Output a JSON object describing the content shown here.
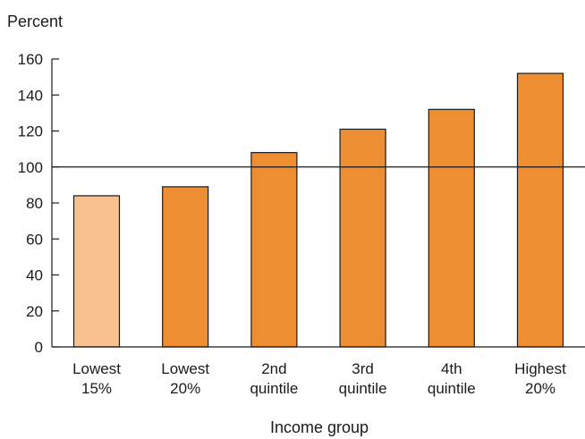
{
  "chart_data": {
    "type": "bar",
    "ylabel": "Percent",
    "xlabel": "Income group",
    "title": "",
    "categories": [
      [
        "Lowest",
        "15%"
      ],
      [
        "Lowest",
        "20%"
      ],
      [
        "2nd",
        "quintile"
      ],
      [
        "3rd",
        "quintile"
      ],
      [
        "4th",
        "quintile"
      ],
      [
        "Highest",
        "20%"
      ]
    ],
    "values": [
      84,
      89,
      108,
      121,
      132,
      152
    ],
    "ylim": [
      0,
      160
    ],
    "yticks": [
      0,
      20,
      40,
      60,
      80,
      100,
      120,
      140,
      160
    ],
    "reference_line": 100,
    "grid": false,
    "colors": {
      "highlight_bar": "#f7c190",
      "bar": "#ee8e33",
      "bar_stroke": "#1a1a1a",
      "axis": "#1a1a1a"
    },
    "highlighted_categories": [
      0
    ]
  }
}
